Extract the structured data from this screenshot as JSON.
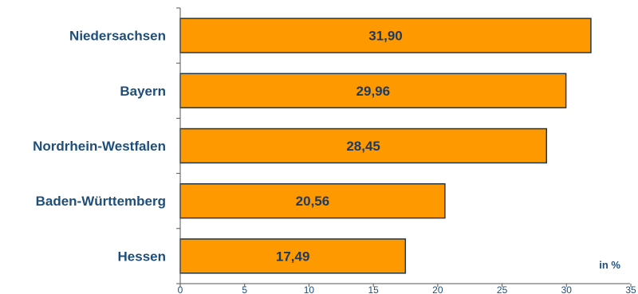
{
  "chart_data": {
    "type": "bar",
    "orientation": "horizontal",
    "categories": [
      "Niedersachsen",
      "Bayern",
      "Nordrhein-Westfalen",
      "Baden-Württemberg",
      "Hessen"
    ],
    "values": [
      31.9,
      29.96,
      28.45,
      20.56,
      17.49
    ],
    "value_labels": [
      "31,90",
      "29,96",
      "28,45",
      "20,56",
      "17,49"
    ],
    "x_ticks": [
      0,
      5,
      10,
      15,
      20,
      25,
      30,
      35
    ],
    "xlim": [
      0,
      35
    ],
    "unit_label": "in %",
    "grid": false,
    "legend": "none",
    "colors": {
      "bar_fill": "#ff9900",
      "bar_stroke": "#1f3a4f",
      "axis": "#555555",
      "label_text": "#1f4e79"
    }
  }
}
